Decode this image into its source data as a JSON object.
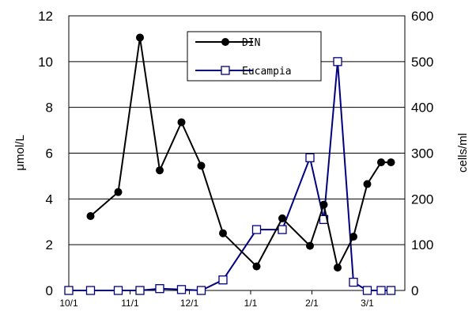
{
  "chart_data": {
    "type": "line",
    "x_tick_labels": [
      "10/1",
      "11/1",
      "12/1",
      "1/1",
      "2/1",
      "3/1"
    ],
    "y_left": {
      "label": "μmol/L",
      "ylim": [
        0,
        12
      ],
      "ticks": [
        "0",
        "2",
        "4",
        "6",
        "8",
        "10",
        "12"
      ]
    },
    "y_right": {
      "label": "cells/ml",
      "ylim": [
        0,
        600
      ],
      "ticks": [
        "0",
        "100",
        "200",
        "300",
        "400",
        "500",
        "600"
      ]
    },
    "legend_position": "top-center",
    "grid": "horizontal",
    "series": [
      {
        "name": "DIN",
        "axis": "left",
        "color": "#000000",
        "marker": "filled-circle",
        "x": [
          "10/12",
          "10/26",
          "11/6",
          "11/16",
          "11/27",
          "12/7",
          "12/18",
          "1/4",
          "1/17",
          "1/31",
          "2/7",
          "2/14",
          "2/22",
          "3/1",
          "3/8",
          "3/13"
        ],
        "values": [
          3.25,
          4.3,
          11.05,
          5.25,
          7.35,
          5.45,
          2.5,
          1.05,
          3.15,
          1.95,
          3.75,
          1.0,
          2.35,
          4.65,
          5.6,
          5.6
        ]
      },
      {
        "name": "Eucampia",
        "axis": "right",
        "color": "#000080",
        "marker": "open-square",
        "x": [
          "10/1",
          "10/12",
          "10/26",
          "11/6",
          "11/16",
          "11/27",
          "12/7",
          "12/18",
          "1/4",
          "1/17",
          "1/31",
          "2/7",
          "2/14",
          "2/22",
          "3/1",
          "3/8",
          "3/13"
        ],
        "values": [
          0,
          0,
          0,
          0,
          4,
          2,
          0,
          23,
          133,
          133,
          290,
          155,
          500,
          18,
          0,
          0,
          0
        ]
      }
    ]
  }
}
